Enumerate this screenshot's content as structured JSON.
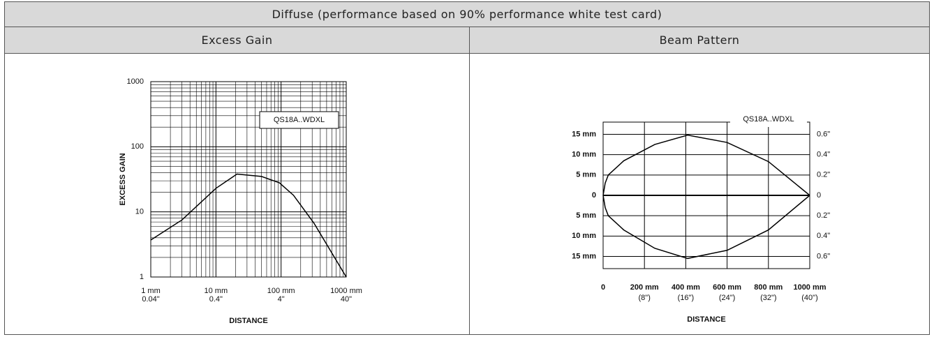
{
  "table": {
    "title": "Diffuse (performance based on 90% performance white test card)",
    "headers": [
      "Excess Gain",
      "Beam Pattern"
    ]
  },
  "chart_data": [
    {
      "type": "line",
      "xscale": "log",
      "yscale": "log",
      "xlabel": "DISTANCE",
      "ylabel": "EXCESS GAIN",
      "annotation": "QS18A..WDXL",
      "grid": true,
      "color": "#000000",
      "x": [
        1,
        3,
        10,
        21,
        50,
        94,
        155,
        320,
        1000
      ],
      "series": [
        {
          "values": [
            3.7,
            7.5,
            23,
            38,
            35,
            28,
            18,
            6.7,
            1
          ]
        }
      ],
      "xlim": [
        1,
        1000
      ],
      "ylim": [
        1,
        1000
      ],
      "xticks": [
        {
          "value": 1,
          "label": "1 mm"
        },
        {
          "value": 10,
          "label": "10 mm"
        },
        {
          "value": 100,
          "label": "100 mm"
        },
        {
          "value": 1000,
          "label": "1000 mm"
        }
      ],
      "x2ticks": [
        {
          "value": 1,
          "label": "0.04\""
        },
        {
          "value": 10,
          "label": "0.4\""
        },
        {
          "value": 100,
          "label": "4\""
        },
        {
          "value": 1000,
          "label": "40\""
        }
      ],
      "yticks": [
        1,
        10,
        100,
        1000
      ]
    },
    {
      "type": "line",
      "xlabel": "DISTANCE",
      "annotation": "QS18A..WDXL",
      "grid": true,
      "color": "#000000",
      "x": [
        0,
        10,
        25,
        100,
        250,
        409,
        600,
        800,
        1000
      ],
      "series": [
        {
          "values": [
            0,
            3,
            5,
            8.5,
            12.5,
            14.8,
            13,
            8.3,
            0
          ]
        },
        {
          "values": [
            0,
            -3,
            -5,
            -8.5,
            -13,
            -15.5,
            -13.5,
            -8.5,
            0
          ]
        }
      ],
      "xlim": [
        0,
        1000
      ],
      "ylim": [
        -18,
        18
      ],
      "y2lim": [
        -0.72,
        0.72
      ],
      "xticks": [
        0,
        {
          "value": 200,
          "label": "200 mm"
        },
        {
          "value": 400,
          "label": "400 mm"
        },
        {
          "value": 600,
          "label": "600 mm"
        },
        {
          "value": 800,
          "label": "800 mm"
        },
        {
          "value": 1000,
          "label": "1000 mm"
        }
      ],
      "x2ticks": [
        {
          "value": 200,
          "label": "(8\")"
        },
        {
          "value": 400,
          "label": "(16\")"
        },
        {
          "value": 600,
          "label": "(24\")"
        },
        {
          "value": 800,
          "label": "(32\")"
        },
        {
          "value": 1000,
          "label": "(40\")"
        }
      ],
      "yticks": [
        {
          "value": 15,
          "label": "15 mm"
        },
        {
          "value": 10,
          "label": "10 mm"
        },
        {
          "value": 5,
          "label": "5 mm"
        },
        0,
        {
          "value": -5,
          "label": "5 mm"
        },
        {
          "value": -10,
          "label": "10 mm"
        },
        {
          "value": -15,
          "label": "15 mm"
        }
      ],
      "y2ticks": [
        {
          "value": 0.6,
          "label": "0.6\""
        },
        {
          "value": 0.4,
          "label": "0.4\""
        },
        {
          "value": 0.2,
          "label": "0.2\""
        },
        0,
        {
          "value": -0.2,
          "label": "0.2\""
        },
        {
          "value": -0.4,
          "label": "0.4\""
        },
        {
          "value": -0.6,
          "label": "0.6\""
        }
      ]
    }
  ]
}
